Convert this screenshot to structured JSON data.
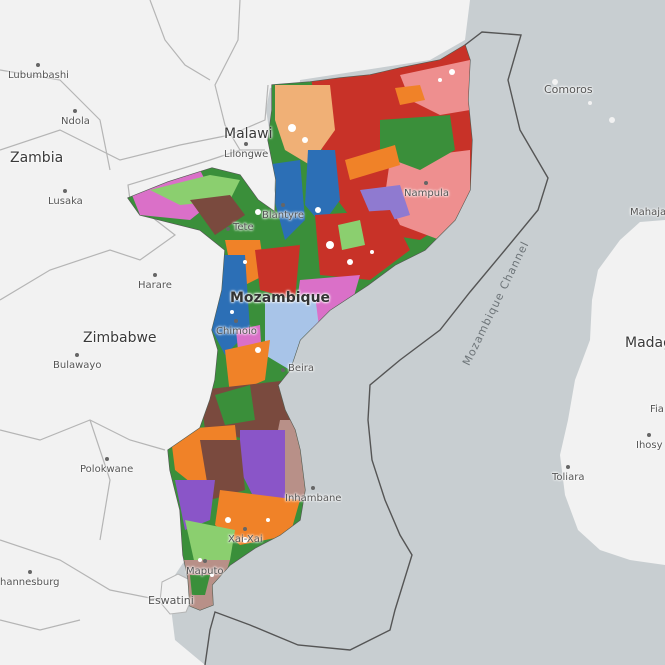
{
  "map": {
    "colors": {
      "water": "#c8ced1",
      "land": "#f2f2f2",
      "border": "#b5b5b5",
      "eez": "#555555"
    },
    "labels": {
      "lubumbashi": "Lubumbashi",
      "ndola": "Ndola",
      "zambia": "Zambia",
      "lusaka": "Lusaka",
      "malawi": "Malawi",
      "lilongwe": "Lilongwe",
      "blantyre": "Blantyre",
      "tete": "Tete",
      "harare": "Harare",
      "mozambique": "Mozambique",
      "zimbabwe": "Zimbabwe",
      "chimoio": "Chimoio",
      "bulawayo": "Bulawayo",
      "beira": "Beira",
      "nampula": "Nampula",
      "comoros": "Comoros",
      "mahajanga": "Mahajan",
      "madagascar": "Madag",
      "mozambique_channel": "Mozambique Channel",
      "polokwane": "Polokwane",
      "inhambane": "Inhambane",
      "xai_xai": "Xai-Xai",
      "maputo": "Maputo",
      "johannesburg": "hannesburg",
      "eswatini": "Eswatini",
      "toliara": "Toliara",
      "ihosy": "Ihosy",
      "fia": "Fia"
    }
  }
}
